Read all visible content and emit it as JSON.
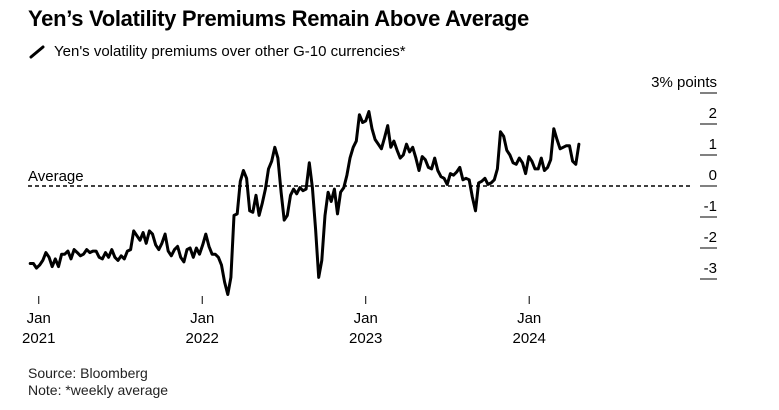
{
  "title": "Yen’s Volatility Premiums Remain Above Average",
  "legend_label": "Yen's volatility premiums over other G-10 currencies*",
  "source": "Source: Bloomberg",
  "note": "Note: *weekly average",
  "colors": {
    "line": "#000000",
    "dashed_average": "#000000",
    "text": "#000000"
  },
  "chart_data": {
    "type": "line",
    "title": "Yen’s Volatility Premiums Remain Above Average",
    "xlabel": "",
    "ylabel": "",
    "y_unit_label": "3% points",
    "average_label": "Average",
    "average_value": 0,
    "ylim": [
      -3.6,
      2.8
    ],
    "y_ticks": [
      3,
      2,
      1,
      0,
      -1,
      -2,
      -3
    ],
    "y_tick_labels": [
      "3% points",
      "2",
      "1",
      "0",
      "-1",
      "-2",
      "-3"
    ],
    "x_range": [
      "2020-12-08",
      "2024-12-25"
    ],
    "x_ticks": [
      {
        "date": "2021-01-01",
        "month": "Jan",
        "year": "2021"
      },
      {
        "date": "2022-01-01",
        "month": "Jan",
        "year": "2022"
      },
      {
        "date": "2023-01-01",
        "month": "Jan",
        "year": "2023"
      },
      {
        "date": "2024-01-01",
        "month": "Jan",
        "year": "2024"
      }
    ],
    "grid": false,
    "series": [
      {
        "name": "Yen's volatility premiums over other G-10 currencies*",
        "points": [
          [
            "2020-12-13",
            -2.5
          ],
          [
            "2020-12-20",
            -2.5
          ],
          [
            "2020-12-27",
            -2.65
          ],
          [
            "2021-01-03",
            -2.55
          ],
          [
            "2021-01-10",
            -2.4
          ],
          [
            "2021-01-17",
            -2.15
          ],
          [
            "2021-01-24",
            -2.3
          ],
          [
            "2021-01-31",
            -2.6
          ],
          [
            "2021-02-07",
            -2.35
          ],
          [
            "2021-02-14",
            -2.6
          ],
          [
            "2021-02-21",
            -2.2
          ],
          [
            "2021-02-28",
            -2.2
          ],
          [
            "2021-03-07",
            -2.1
          ],
          [
            "2021-03-14",
            -2.35
          ],
          [
            "2021-03-21",
            -2.05
          ],
          [
            "2021-03-28",
            -2.15
          ],
          [
            "2021-04-04",
            -2.25
          ],
          [
            "2021-04-11",
            -2.2
          ],
          [
            "2021-04-18",
            -2.05
          ],
          [
            "2021-04-25",
            -2.15
          ],
          [
            "2021-05-02",
            -2.1
          ],
          [
            "2021-05-09",
            -2.1
          ],
          [
            "2021-05-16",
            -2.3
          ],
          [
            "2021-05-23",
            -2.35
          ],
          [
            "2021-05-30",
            -2.15
          ],
          [
            "2021-06-06",
            -2.3
          ],
          [
            "2021-06-13",
            -2.05
          ],
          [
            "2021-06-20",
            -2.3
          ],
          [
            "2021-06-27",
            -2.4
          ],
          [
            "2021-07-04",
            -2.25
          ],
          [
            "2021-07-11",
            -2.35
          ],
          [
            "2021-07-18",
            -2.1
          ],
          [
            "2021-07-25",
            -2.05
          ],
          [
            "2021-08-01",
            -1.45
          ],
          [
            "2021-08-08",
            -1.6
          ],
          [
            "2021-08-15",
            -1.75
          ],
          [
            "2021-08-22",
            -1.5
          ],
          [
            "2021-08-29",
            -1.85
          ],
          [
            "2021-09-05",
            -1.45
          ],
          [
            "2021-09-12",
            -1.55
          ],
          [
            "2021-09-19",
            -1.9
          ],
          [
            "2021-09-26",
            -2.05
          ],
          [
            "2021-10-03",
            -1.85
          ],
          [
            "2021-10-10",
            -1.55
          ],
          [
            "2021-10-17",
            -2.1
          ],
          [
            "2021-10-24",
            -2.25
          ],
          [
            "2021-10-31",
            -2.05
          ],
          [
            "2021-11-07",
            -1.95
          ],
          [
            "2021-11-14",
            -2.3
          ],
          [
            "2021-11-21",
            -2.45
          ],
          [
            "2021-11-28",
            -2.05
          ],
          [
            "2021-12-05",
            -2.0
          ],
          [
            "2021-12-12",
            -2.3
          ],
          [
            "2021-12-19",
            -2.0
          ],
          [
            "2021-12-26",
            -2.2
          ],
          [
            "2022-01-02",
            -1.9
          ],
          [
            "2022-01-09",
            -1.55
          ],
          [
            "2022-01-16",
            -1.95
          ],
          [
            "2022-01-23",
            -2.2
          ],
          [
            "2022-01-30",
            -2.2
          ],
          [
            "2022-02-06",
            -2.3
          ],
          [
            "2022-02-13",
            -2.55
          ],
          [
            "2022-02-20",
            -3.1
          ],
          [
            "2022-02-27",
            -3.5
          ],
          [
            "2022-03-06",
            -2.95
          ],
          [
            "2022-03-13",
            -0.95
          ],
          [
            "2022-03-20",
            -0.9
          ],
          [
            "2022-03-27",
            0.15
          ],
          [
            "2022-04-03",
            0.5
          ],
          [
            "2022-04-10",
            0.25
          ],
          [
            "2022-04-17",
            -0.8
          ],
          [
            "2022-04-24",
            -0.85
          ],
          [
            "2022-05-01",
            -0.3
          ],
          [
            "2022-05-08",
            -0.95
          ],
          [
            "2022-05-15",
            -0.55
          ],
          [
            "2022-05-22",
            -0.1
          ],
          [
            "2022-05-29",
            0.55
          ],
          [
            "2022-06-05",
            0.8
          ],
          [
            "2022-06-12",
            1.25
          ],
          [
            "2022-06-19",
            0.9
          ],
          [
            "2022-06-26",
            -0.2
          ],
          [
            "2022-07-03",
            -1.1
          ],
          [
            "2022-07-10",
            -0.95
          ],
          [
            "2022-07-17",
            -0.3
          ],
          [
            "2022-07-24",
            -0.1
          ],
          [
            "2022-07-31",
            -0.25
          ],
          [
            "2022-08-07",
            -0.05
          ],
          [
            "2022-08-14",
            -0.15
          ],
          [
            "2022-08-21",
            -0.1
          ],
          [
            "2022-08-28",
            0.75
          ],
          [
            "2022-09-04",
            -0.05
          ],
          [
            "2022-09-11",
            -1.4
          ],
          [
            "2022-09-18",
            -2.95
          ],
          [
            "2022-09-25",
            -2.4
          ],
          [
            "2022-10-02",
            -0.95
          ],
          [
            "2022-10-09",
            -0.2
          ],
          [
            "2022-10-16",
            -0.5
          ],
          [
            "2022-10-23",
            -0.1
          ],
          [
            "2022-10-30",
            -0.9
          ],
          [
            "2022-11-06",
            -0.2
          ],
          [
            "2022-11-13",
            -0.05
          ],
          [
            "2022-11-20",
            0.35
          ],
          [
            "2022-11-27",
            0.9
          ],
          [
            "2022-12-04",
            1.25
          ],
          [
            "2022-12-11",
            1.45
          ],
          [
            "2022-12-18",
            2.3
          ],
          [
            "2022-12-25",
            2.05
          ],
          [
            "2023-01-01",
            2.1
          ],
          [
            "2023-01-08",
            2.4
          ],
          [
            "2023-01-15",
            1.85
          ],
          [
            "2023-01-22",
            1.5
          ],
          [
            "2023-01-29",
            1.35
          ],
          [
            "2023-02-05",
            1.2
          ],
          [
            "2023-02-12",
            1.55
          ],
          [
            "2023-02-19",
            1.95
          ],
          [
            "2023-02-26",
            1.25
          ],
          [
            "2023-03-05",
            1.45
          ],
          [
            "2023-03-12",
            1.15
          ],
          [
            "2023-03-19",
            0.9
          ],
          [
            "2023-03-26",
            1.0
          ],
          [
            "2023-04-02",
            1.35
          ],
          [
            "2023-04-09",
            1.1
          ],
          [
            "2023-04-16",
            1.25
          ],
          [
            "2023-04-23",
            0.9
          ],
          [
            "2023-04-30",
            0.5
          ],
          [
            "2023-05-07",
            0.95
          ],
          [
            "2023-05-14",
            0.85
          ],
          [
            "2023-05-21",
            0.6
          ],
          [
            "2023-05-28",
            0.55
          ],
          [
            "2023-06-04",
            0.9
          ],
          [
            "2023-06-11",
            0.5
          ],
          [
            "2023-06-18",
            0.3
          ],
          [
            "2023-06-25",
            0.25
          ],
          [
            "2023-07-02",
            0.05
          ],
          [
            "2023-07-09",
            0.4
          ],
          [
            "2023-07-16",
            0.35
          ],
          [
            "2023-07-23",
            0.45
          ],
          [
            "2023-07-30",
            0.6
          ],
          [
            "2023-08-06",
            0.2
          ],
          [
            "2023-08-13",
            0.25
          ],
          [
            "2023-08-20",
            0.2
          ],
          [
            "2023-08-27",
            -0.35
          ],
          [
            "2023-09-03",
            -0.8
          ],
          [
            "2023-09-10",
            0.1
          ],
          [
            "2023-09-17",
            0.15
          ],
          [
            "2023-09-24",
            0.25
          ],
          [
            "2023-10-01",
            0.05
          ],
          [
            "2023-10-08",
            0.1
          ],
          [
            "2023-10-15",
            0.2
          ],
          [
            "2023-10-22",
            0.55
          ],
          [
            "2023-10-29",
            1.75
          ],
          [
            "2023-11-05",
            1.6
          ],
          [
            "2023-11-12",
            1.15
          ],
          [
            "2023-11-19",
            1.0
          ],
          [
            "2023-11-26",
            0.75
          ],
          [
            "2023-12-03",
            0.7
          ],
          [
            "2023-12-10",
            0.9
          ],
          [
            "2023-12-17",
            0.75
          ],
          [
            "2023-12-24",
            0.4
          ],
          [
            "2023-12-31",
            0.95
          ],
          [
            "2024-01-07",
            0.8
          ],
          [
            "2024-01-14",
            0.55
          ],
          [
            "2024-01-21",
            0.55
          ],
          [
            "2024-01-28",
            0.9
          ],
          [
            "2024-02-04",
            0.5
          ],
          [
            "2024-02-11",
            0.6
          ],
          [
            "2024-02-18",
            0.85
          ],
          [
            "2024-02-25",
            1.85
          ],
          [
            "2024-03-03",
            1.5
          ],
          [
            "2024-03-10",
            1.2
          ],
          [
            "2024-03-17",
            1.25
          ],
          [
            "2024-03-24",
            1.3
          ],
          [
            "2024-03-31",
            1.3
          ],
          [
            "2024-04-07",
            0.8
          ],
          [
            "2024-04-14",
            0.7
          ],
          [
            "2024-04-21",
            1.35
          ]
        ]
      }
    ]
  }
}
